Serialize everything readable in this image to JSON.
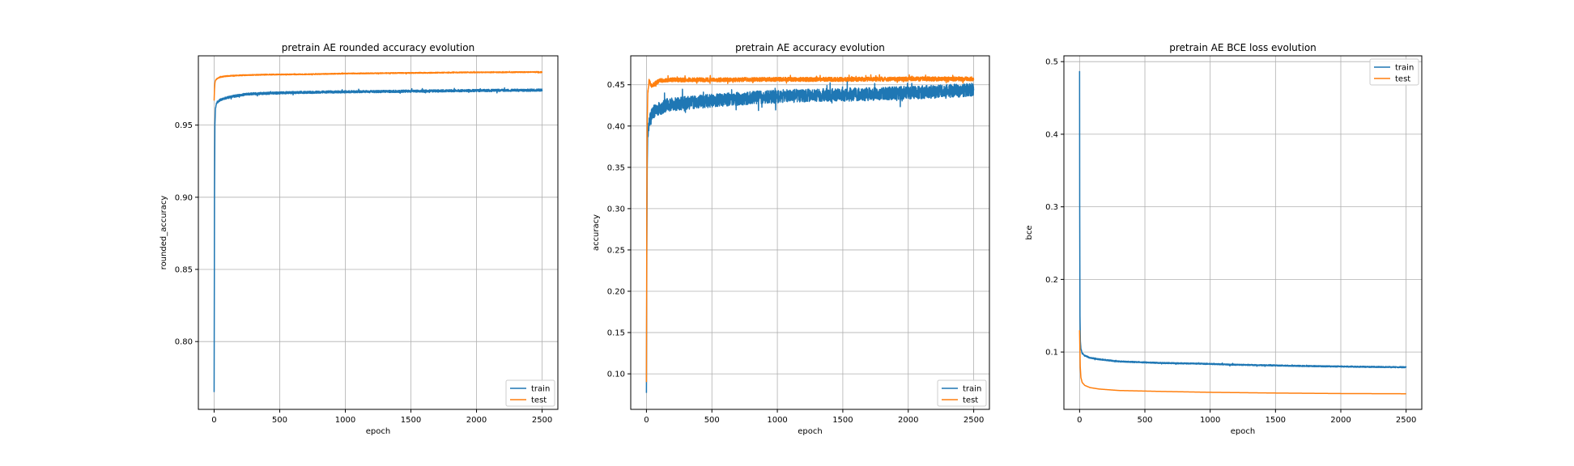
{
  "chart_data": [
    {
      "type": "line",
      "title": "pretrain AE rounded accuracy evolution",
      "xlabel": "epoch",
      "ylabel": "rounded_accuracy",
      "xlim": [
        -120,
        2620
      ],
      "ylim": [
        0.753,
        0.998
      ],
      "xticks": [
        0,
        500,
        1000,
        1500,
        2000,
        2500
      ],
      "xtick_labels": [
        "0",
        "500",
        "1000",
        "1500",
        "2000",
        "2500"
      ],
      "yticks": [
        0.8,
        0.85,
        0.9,
        0.95
      ],
      "ytick_labels": [
        "0.80",
        "0.85",
        "0.90",
        "0.95"
      ],
      "grid": true,
      "legend_position": "lower-right",
      "series": [
        {
          "name": "train",
          "color": "#1f77b4",
          "noise": 0.0008,
          "x": [
            0,
            3,
            6,
            10,
            15,
            25,
            40,
            60,
            100,
            150,
            250,
            400,
            600,
            900,
            1200,
            1500,
            1800,
            2100,
            2400,
            2500
          ],
          "y": [
            0.765,
            0.9,
            0.95,
            0.961,
            0.964,
            0.966,
            0.967,
            0.968,
            0.969,
            0.97,
            0.9715,
            0.972,
            0.9725,
            0.973,
            0.9732,
            0.9735,
            0.9738,
            0.974,
            0.9742,
            0.9743
          ]
        },
        {
          "name": "test",
          "color": "#ff7f0e",
          "noise": 0.0003,
          "x": [
            0,
            3,
            6,
            10,
            20,
            40,
            60,
            100,
            200,
            400,
            700,
            1000,
            1300,
            1600,
            1900,
            2200,
            2500
          ],
          "y": [
            0.967,
            0.975,
            0.979,
            0.981,
            0.982,
            0.983,
            0.9835,
            0.984,
            0.9845,
            0.985,
            0.9852,
            0.9857,
            0.986,
            0.9862,
            0.9865,
            0.9866,
            0.9868
          ]
        }
      ]
    },
    {
      "type": "line",
      "title": "pretrain AE accuracy evolution",
      "xlabel": "epoch",
      "ylabel": "accuracy",
      "xlim": [
        -120,
        2620
      ],
      "ylim": [
        0.057,
        0.485
      ],
      "xticks": [
        0,
        500,
        1000,
        1500,
        2000,
        2500
      ],
      "xtick_labels": [
        "0",
        "500",
        "1000",
        "1500",
        "2000",
        "2500"
      ],
      "yticks": [
        0.1,
        0.15,
        0.2,
        0.25,
        0.3,
        0.35,
        0.4,
        0.45
      ],
      "ytick_labels": [
        "0.10",
        "0.15",
        "0.20",
        "0.25",
        "0.30",
        "0.35",
        "0.40",
        "0.45"
      ],
      "grid": true,
      "legend_position": "lower-right",
      "series": [
        {
          "name": "train",
          "color": "#1f77b4",
          "noise": 0.008,
          "x": [
            0,
            3,
            6,
            10,
            20,
            40,
            80,
            150,
            300,
            600,
            900,
            1200,
            1500,
            1800,
            2100,
            2400,
            2500
          ],
          "y": [
            0.077,
            0.25,
            0.35,
            0.39,
            0.405,
            0.415,
            0.42,
            0.425,
            0.428,
            0.432,
            0.435,
            0.437,
            0.438,
            0.439,
            0.441,
            0.443,
            0.444
          ]
        },
        {
          "name": "test",
          "color": "#ff7f0e",
          "noise": 0.0025,
          "x": [
            0,
            3,
            6,
            10,
            20,
            40,
            70,
            100,
            200,
            500,
            1000,
            1500,
            2000,
            2500
          ],
          "y": [
            0.09,
            0.3,
            0.4,
            0.44,
            0.455,
            0.448,
            0.452,
            0.455,
            0.456,
            0.456,
            0.4565,
            0.4565,
            0.457,
            0.457
          ]
        }
      ]
    },
    {
      "type": "line",
      "title": "pretrain AE BCE loss evolution",
      "xlabel": "epoch",
      "ylabel": "bce",
      "xlim": [
        -120,
        2620
      ],
      "ylim": [
        0.021,
        0.508
      ],
      "xticks": [
        0,
        500,
        1000,
        1500,
        2000,
        2500
      ],
      "xtick_labels": [
        "0",
        "500",
        "1000",
        "1500",
        "2000",
        "2500"
      ],
      "yticks": [
        0.1,
        0.2,
        0.3,
        0.4,
        0.5
      ],
      "ytick_labels": [
        "0.1",
        "0.2",
        "0.3",
        "0.4",
        "0.5"
      ],
      "grid": true,
      "legend_position": "upper-right",
      "series": [
        {
          "name": "train",
          "color": "#1f77b4",
          "noise": 0.0008,
          "x": [
            0,
            1,
            3,
            6,
            10,
            20,
            40,
            80,
            150,
            300,
            600,
            900,
            1200,
            1500,
            1800,
            2100,
            2500
          ],
          "y": [
            0.487,
            0.3,
            0.15,
            0.115,
            0.105,
            0.098,
            0.095,
            0.092,
            0.09,
            0.087,
            0.085,
            0.084,
            0.0825,
            0.0815,
            0.0805,
            0.0798,
            0.079
          ]
        },
        {
          "name": "test",
          "color": "#ff7f0e",
          "noise": 0,
          "x": [
            0,
            5,
            10,
            20,
            40,
            80,
            150,
            300,
            600,
            1000,
            1500,
            2000,
            2500
          ],
          "y": [
            0.13,
            0.08,
            0.065,
            0.058,
            0.054,
            0.051,
            0.049,
            0.047,
            0.0458,
            0.0445,
            0.0435,
            0.0428,
            0.0425
          ]
        }
      ]
    }
  ]
}
